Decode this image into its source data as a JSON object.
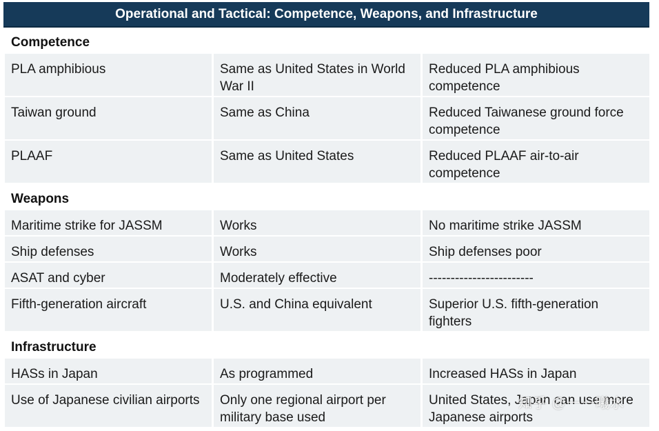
{
  "title": "Operational and Tactical: Competence, Weapons, and Infrastructure",
  "sections": [
    {
      "heading": "Competence",
      "rows": [
        [
          "PLA amphibious",
          "Same as United States in World War II",
          "Reduced PLA amphibious competence"
        ],
        [
          "Taiwan ground",
          "Same as China",
          "Reduced Taiwanese ground force competence"
        ],
        [
          "PLAAF",
          "Same as United States",
          "Reduced PLAAF air-to-air competence"
        ]
      ]
    },
    {
      "heading": "Weapons",
      "rows": [
        [
          "Maritime strike for JASSM",
          "Works",
          "No maritime strike JASSM"
        ],
        [
          "Ship defenses",
          "Works",
          "Ship defenses poor"
        ],
        [
          "ASAT and cyber",
          "Moderately effective",
          "------------------------"
        ],
        [
          "Fifth-generation aircraft",
          "U.S. and China equivalent",
          "Superior U.S. fifth-generation fighters"
        ]
      ]
    },
    {
      "heading": "Infrastructure",
      "rows": [
        [
          "HASs in Japan",
          "As programmed",
          "Increased HASs in Japan"
        ],
        [
          "Use of Japanese civilian airports",
          "Only one regional airport per military base used",
          "United States, Japan can use more Japanese airports"
        ]
      ]
    }
  ],
  "watermark": "知乎 @一一曦水"
}
